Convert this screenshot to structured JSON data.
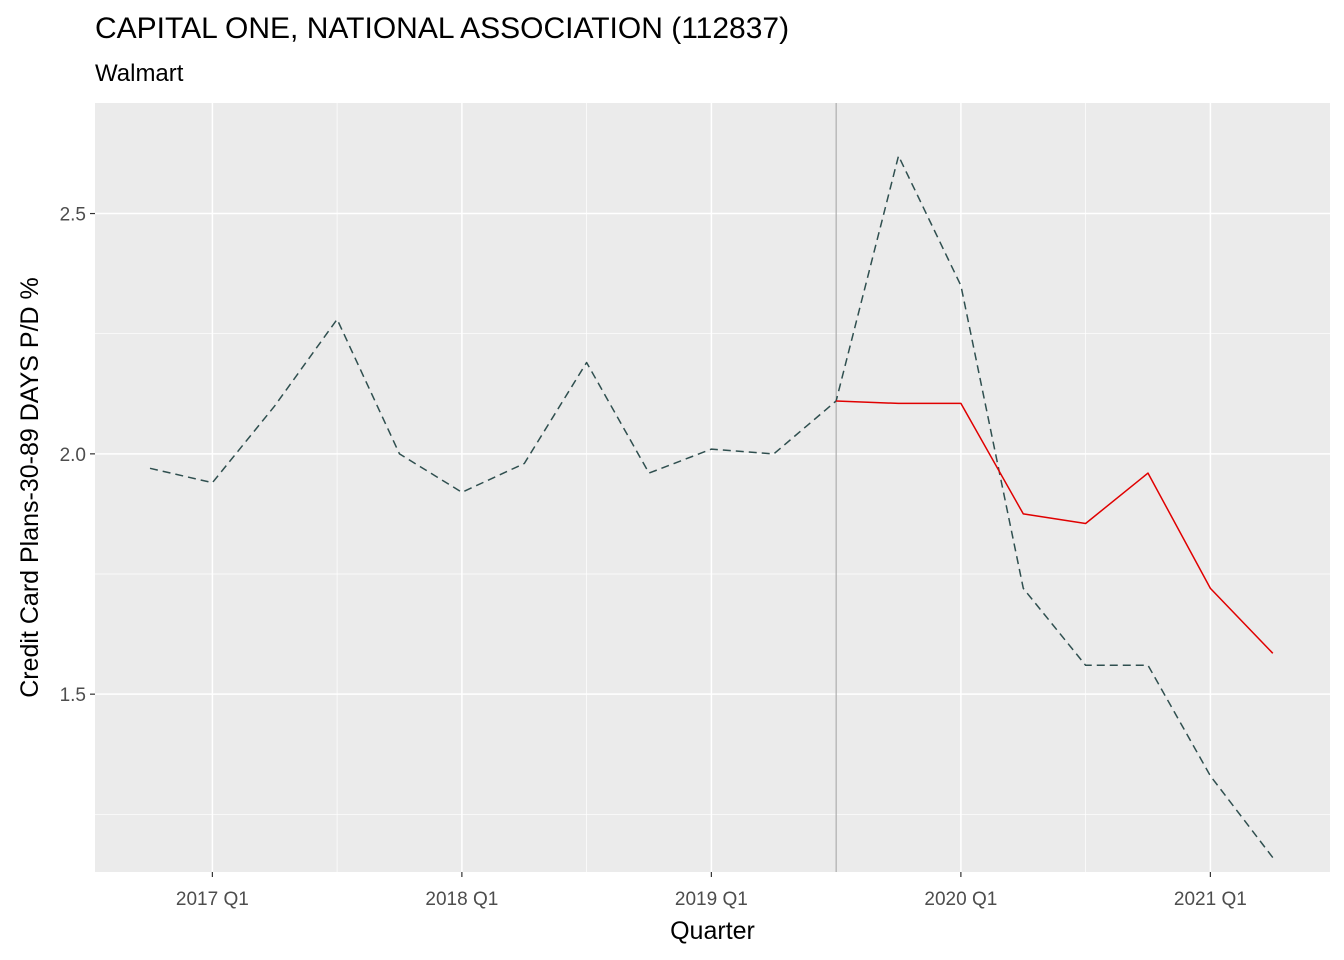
{
  "chart_data": {
    "type": "line",
    "title": "CAPITAL ONE, NATIONAL ASSOCIATION (112837)",
    "subtitle": "Walmart",
    "xlabel": "Quarter",
    "ylabel": "Credit Card Plans-30-89 DAYS P/D %",
    "x_categories": [
      "2016 Q4",
      "2017 Q1",
      "2017 Q2",
      "2017 Q3",
      "2017 Q4",
      "2018 Q1",
      "2018 Q2",
      "2018 Q3",
      "2018 Q4",
      "2019 Q1",
      "2019 Q2",
      "2019 Q3",
      "2019 Q4",
      "2020 Q1",
      "2020 Q2",
      "2020 Q3",
      "2020 Q4",
      "2021 Q1",
      "2021 Q2"
    ],
    "x_tick_labels": [
      "2017 Q1",
      "2018 Q1",
      "2019 Q1",
      "2020 Q1",
      "2021 Q1"
    ],
    "y_tick_labels": [
      "1.5",
      "2.0",
      "2.5"
    ],
    "ylim": [
      1.13,
      2.73
    ],
    "grid": true,
    "reference_line_x": "2019 Q3",
    "series": [
      {
        "color": "#2f4f4f",
        "dash": "dashed",
        "start_index": 0,
        "values": [
          1.97,
          1.94,
          2.1,
          2.28,
          2.0,
          1.92,
          1.98,
          2.19,
          1.96,
          2.01,
          2.0,
          2.11,
          2.62,
          2.35,
          1.72,
          1.56,
          1.56,
          1.33,
          1.16
        ]
      },
      {
        "color": "#e00000",
        "dash": "solid",
        "start_index": 11,
        "values": [
          2.11,
          2.105,
          2.105,
          1.875,
          1.855,
          1.96,
          1.72,
          1.585
        ]
      }
    ]
  }
}
